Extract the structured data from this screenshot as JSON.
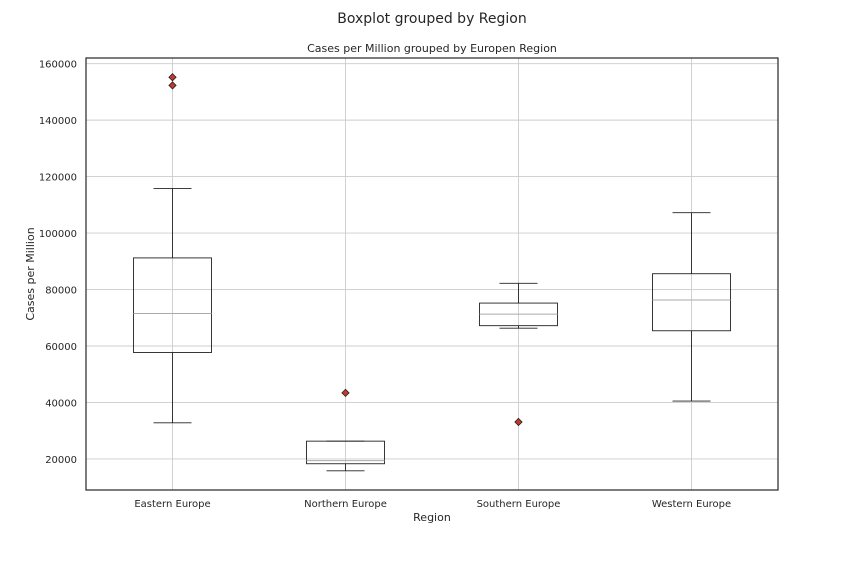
{
  "chart_data": {
    "type": "box",
    "suptitle": "Boxplot grouped by Region",
    "title": "Cases per Million grouped by Europen Region",
    "xlabel": "Region",
    "ylabel": "Cases per Million",
    "ylim": [
      9000,
      162000
    ],
    "yticks": [
      20000,
      40000,
      60000,
      80000,
      100000,
      120000,
      140000,
      160000
    ],
    "ytick_labels": [
      "20000",
      "40000",
      "60000",
      "80000",
      "100000",
      "120000",
      "140000",
      "160000"
    ],
    "grid": true,
    "categories": [
      "Eastern Europe",
      "Northern Europe",
      "Southern Europe",
      "Western Europe"
    ],
    "boxes": [
      {
        "whislo": 32800,
        "q1": 57700,
        "med": 71500,
        "q3": 91200,
        "whishi": 115800,
        "fliers": [
          152300,
          155200
        ]
      },
      {
        "whislo": 15800,
        "q1": 18300,
        "med": 19400,
        "q3": 26300,
        "whishi": 26300,
        "fliers": [
          43400
        ]
      },
      {
        "whislo": 66300,
        "q1": 67200,
        "med": 71300,
        "q3": 75200,
        "whishi": 82200,
        "fliers": [
          33100
        ]
      },
      {
        "whislo": 40500,
        "q1": 65400,
        "med": 76300,
        "q3": 85600,
        "whishi": 107200,
        "fliers": []
      }
    ],
    "colors": {
      "box": "#222222",
      "median": "#aaaaaa",
      "flier": "#c0392b",
      "grid": "#cccccc"
    }
  }
}
